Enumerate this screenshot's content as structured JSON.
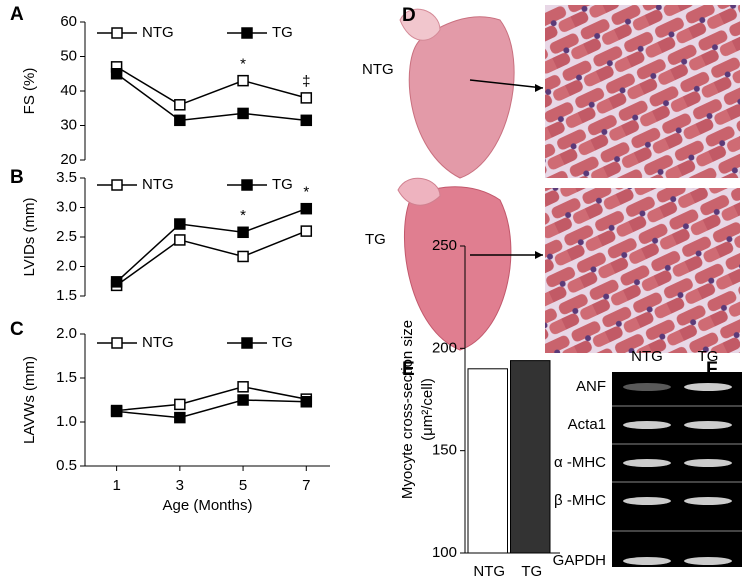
{
  "chart_data": [
    {
      "type": "line",
      "panel": "A",
      "ylabel": "FS (%)",
      "x": [
        1,
        3,
        5,
        7
      ],
      "xlim": [
        0,
        7.75
      ],
      "ylim": [
        20,
        60
      ],
      "yticks": [
        20,
        30,
        40,
        50,
        60
      ],
      "series": [
        {
          "name": "NTG",
          "color": "#000",
          "filled": false,
          "values": [
            47,
            36,
            43,
            38
          ]
        },
        {
          "name": "TG",
          "color": "#000",
          "filled": true,
          "values": [
            45,
            31.5,
            33.5,
            31.5
          ]
        }
      ],
      "annotations": [
        {
          "text": "*",
          "x": 5
        },
        {
          "text": "‡",
          "x": 7
        }
      ]
    },
    {
      "type": "line",
      "panel": "B",
      "ylabel": "LVIDs  (mm)",
      "x": [
        1,
        3,
        5,
        7
      ],
      "xlim": [
        0,
        7.75
      ],
      "ylim": [
        1.5,
        3.5
      ],
      "yticks": [
        1.5,
        {
          "value": 2,
          "label": "2.0"
        },
        2.5,
        {
          "value": 3,
          "label": "3.0"
        },
        3.5
      ],
      "series": [
        {
          "name": "NTG",
          "color": "#000",
          "filled": false,
          "values": [
            1.68,
            2.45,
            2.17,
            2.6
          ]
        },
        {
          "name": "TG",
          "color": "#000",
          "filled": true,
          "values": [
            1.74,
            2.72,
            2.58,
            2.98
          ]
        }
      ],
      "annotations": [
        {
          "text": "*",
          "x": 5
        },
        {
          "text": "*",
          "x": 7
        }
      ]
    },
    {
      "type": "line",
      "panel": "C",
      "ylabel": "LAVWs (mm)",
      "xlabel": "Age (Months)",
      "x": [
        1,
        3,
        5,
        7
      ],
      "xlim": [
        0,
        7.75
      ],
      "xticks": [
        1,
        3,
        5,
        7
      ],
      "ylim": [
        0.5,
        2
      ],
      "yticks": [
        0.5,
        {
          "value": 1,
          "label": "1.0"
        },
        1.5,
        {
          "value": 2,
          "label": "2.0"
        }
      ],
      "series": [
        {
          "name": "NTG",
          "color": "#000",
          "filled": false,
          "values": [
            1.13,
            1.2,
            1.4,
            1.26
          ]
        },
        {
          "name": "TG",
          "color": "#000",
          "filled": true,
          "values": [
            1.12,
            1.05,
            1.25,
            1.23
          ]
        }
      ]
    },
    {
      "type": "bar",
      "panel": "E",
      "ylabel": [
        "Myocyte cross-section size",
        "(μm²/cell)"
      ],
      "categories": [
        "NTG",
        "TG"
      ],
      "values": [
        190,
        194
      ],
      "colors": [
        "#ffffff",
        "#333333"
      ],
      "ylim": [
        100,
        250
      ],
      "yticks": [
        100,
        150,
        200,
        250
      ]
    }
  ],
  "histology": {
    "panel": "D",
    "labels": [
      "NTG",
      "TG"
    ]
  },
  "gel": {
    "panel": "F",
    "lanes": [
      "NTG",
      "TG"
    ],
    "bands": [
      "ANF",
      "Acta1",
      "α -MHC",
      "β -MHC",
      "GAPDH"
    ]
  }
}
